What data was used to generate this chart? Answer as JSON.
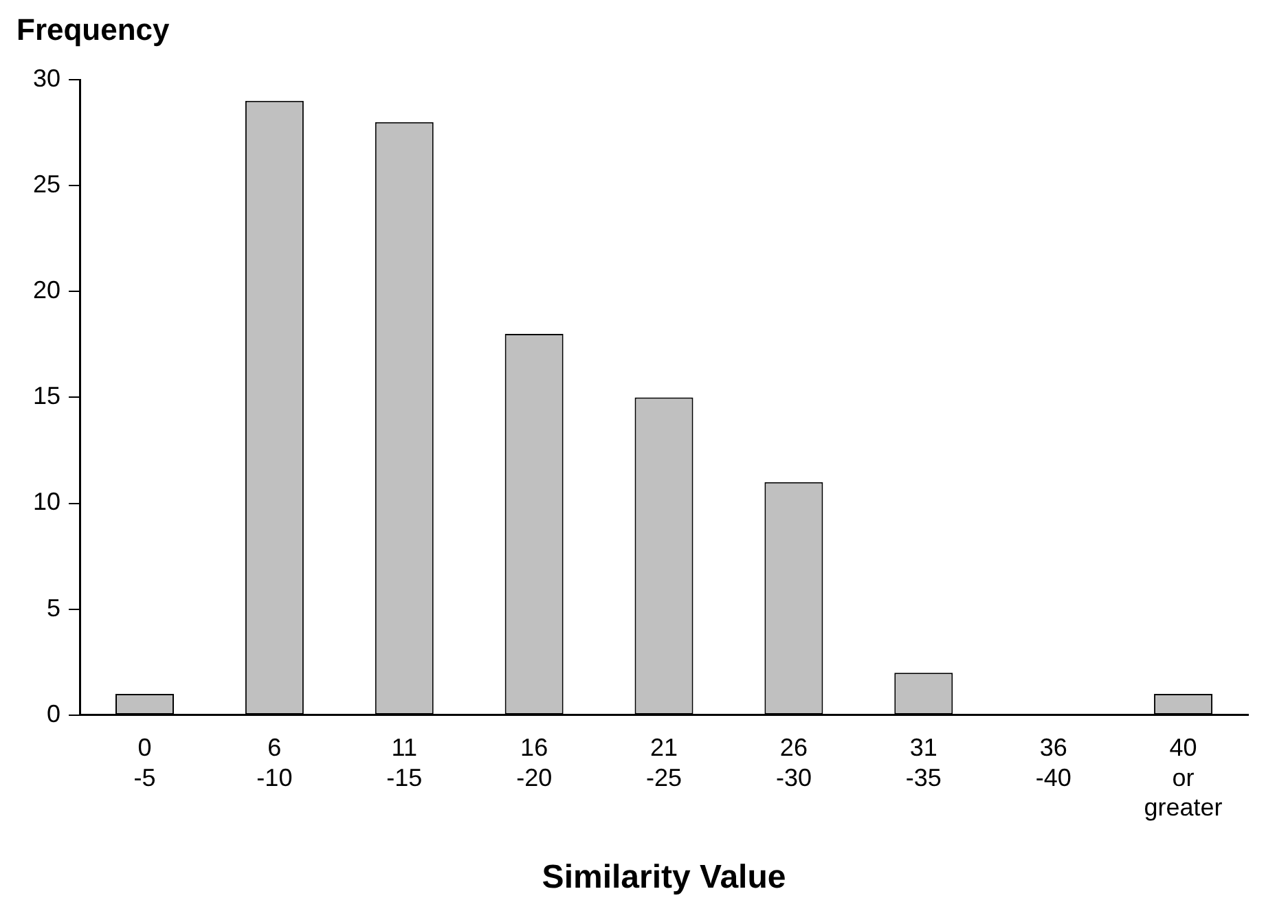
{
  "chart_data": {
    "type": "bar",
    "xlabel": "Similarity Value",
    "ylabel": "Frequency",
    "categories": [
      "0\n-5",
      "6\n-10",
      "11\n-15",
      "16\n-20",
      "21\n-25",
      "26\n-30",
      "31\n-35",
      "36\n-40",
      "40\nor\ngreater"
    ],
    "values": [
      1,
      29,
      28,
      18,
      15,
      11,
      2,
      0,
      1
    ],
    "color": "#c0c0c0",
    "ylim": [
      0,
      30
    ],
    "yticks": [
      0,
      5,
      10,
      15,
      20,
      25,
      30
    ],
    "grid": false,
    "legend": false
  }
}
